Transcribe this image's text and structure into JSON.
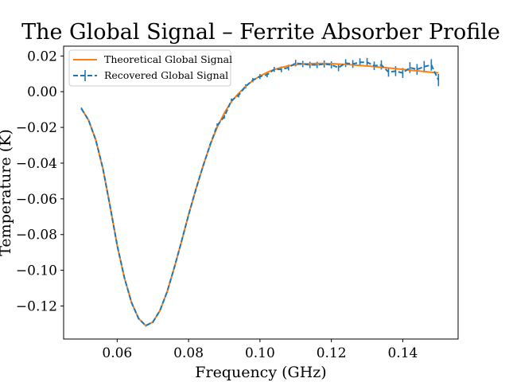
{
  "chart_data": {
    "type": "line",
    "title": "The Global Signal – Ferrite Absorber Profile",
    "xlabel": "Frequency (GHz)",
    "ylabel": "Temperature (K)",
    "xlim": [
      0.045,
      0.1555
    ],
    "ylim": [
      -0.1385,
      0.0255
    ],
    "xticks": [
      0.06,
      0.08,
      0.1,
      0.12,
      0.14
    ],
    "xtick_labels": [
      "0.06",
      "0.08",
      "0.10",
      "0.12",
      "0.14"
    ],
    "yticks": [
      0.02,
      0.0,
      -0.02,
      -0.04,
      -0.06,
      -0.08,
      -0.1,
      -0.12
    ],
    "ytick_labels": [
      "0.02",
      "0.00",
      "−0.02",
      "−0.04",
      "−0.06",
      "−0.08",
      "−0.10",
      "−0.12"
    ],
    "grid": false,
    "legend_position": "top-left",
    "series": [
      {
        "name": "Theoretical Global Signal",
        "style": "solid",
        "color": "#ff7f0e",
        "x": [
          0.05,
          0.052,
          0.054,
          0.056,
          0.058,
          0.06,
          0.062,
          0.064,
          0.066,
          0.068,
          0.07,
          0.072,
          0.074,
          0.076,
          0.078,
          0.08,
          0.082,
          0.084,
          0.086,
          0.088,
          0.09,
          0.092,
          0.094,
          0.096,
          0.098,
          0.1,
          0.102,
          0.104,
          0.106,
          0.108,
          0.11,
          0.112,
          0.114,
          0.116,
          0.118,
          0.12,
          0.122,
          0.124,
          0.126,
          0.128,
          0.13,
          0.132,
          0.134,
          0.136,
          0.138,
          0.14,
          0.142,
          0.144,
          0.146,
          0.148,
          0.15
        ],
        "y": [
          -0.0095,
          -0.016,
          -0.027,
          -0.043,
          -0.064,
          -0.086,
          -0.104,
          -0.118,
          -0.127,
          -0.131,
          -0.129,
          -0.1225,
          -0.112,
          -0.0985,
          -0.084,
          -0.069,
          -0.055,
          -0.042,
          -0.03,
          -0.02,
          -0.012,
          -0.0055,
          -0.001,
          0.003,
          0.0062,
          0.0088,
          0.0108,
          0.0124,
          0.0136,
          0.0145,
          0.0151,
          0.0155,
          0.0157,
          0.0158,
          0.0158,
          0.0157,
          0.0155,
          0.0153,
          0.015,
          0.0147,
          0.0144,
          0.0141,
          0.0137,
          0.0133,
          0.0129,
          0.0125,
          0.0121,
          0.0117,
          0.0113,
          0.0109,
          0.0105
        ]
      },
      {
        "name": "Recovered Global Signal",
        "style": "dashed",
        "color": "#1f77b4",
        "x": [
          0.05,
          0.052,
          0.054,
          0.056,
          0.058,
          0.06,
          0.062,
          0.064,
          0.066,
          0.068,
          0.07,
          0.072,
          0.074,
          0.076,
          0.078,
          0.08,
          0.082,
          0.084,
          0.086,
          0.088,
          0.09,
          0.092,
          0.094,
          0.096,
          0.098,
          0.1,
          0.102,
          0.104,
          0.106,
          0.108,
          0.11,
          0.112,
          0.114,
          0.116,
          0.118,
          0.12,
          0.122,
          0.124,
          0.126,
          0.128,
          0.13,
          0.132,
          0.134,
          0.136,
          0.138,
          0.14,
          0.142,
          0.144,
          0.146,
          0.148,
          0.15
        ],
        "y": [
          -0.0095,
          -0.016,
          -0.027,
          -0.043,
          -0.064,
          -0.086,
          -0.104,
          -0.118,
          -0.127,
          -0.131,
          -0.129,
          -0.1225,
          -0.112,
          -0.0985,
          -0.084,
          -0.069,
          -0.055,
          -0.042,
          -0.03,
          -0.019,
          -0.014,
          -0.005,
          -0.002,
          0.003,
          0.0065,
          0.0085,
          0.0095,
          0.0125,
          0.0125,
          0.0135,
          0.016,
          0.0155,
          0.015,
          0.015,
          0.0155,
          0.015,
          0.0135,
          0.016,
          0.0155,
          0.0165,
          0.0165,
          0.0145,
          0.015,
          0.011,
          0.0115,
          0.0105,
          0.0135,
          0.0125,
          0.014,
          0.015,
          0.0065
        ],
        "yerr": [
          0.0006,
          0.0006,
          0.0006,
          0.0006,
          0.0006,
          0.0006,
          0.0006,
          0.0006,
          0.0006,
          0.0006,
          0.0006,
          0.0006,
          0.0006,
          0.0006,
          0.0006,
          0.0006,
          0.0008,
          0.0008,
          0.001,
          0.0012,
          0.0012,
          0.0012,
          0.0012,
          0.0012,
          0.0012,
          0.0014,
          0.0014,
          0.0014,
          0.0016,
          0.0016,
          0.0018,
          0.0018,
          0.0018,
          0.0018,
          0.002,
          0.002,
          0.002,
          0.0022,
          0.0022,
          0.0022,
          0.0024,
          0.0024,
          0.0026,
          0.0026,
          0.0028,
          0.0028,
          0.003,
          0.003,
          0.0032,
          0.0032,
          0.0034
        ]
      }
    ]
  }
}
